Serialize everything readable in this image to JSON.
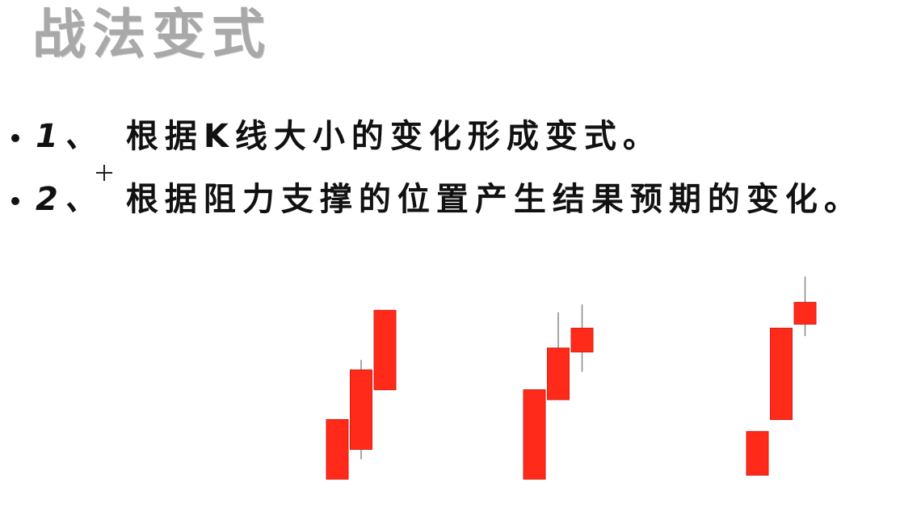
{
  "slide": {
    "title": "战法变式",
    "bullets": [
      {
        "number": "1、",
        "text": "根据K线大小的变化形成变式。"
      },
      {
        "number": "2、",
        "text": "根据阻力支撑的位置产生结果预期的变化。"
      }
    ]
  },
  "colors": {
    "candle_fill": "#ff2a1a",
    "candle_border": "#d81e10",
    "wick": "#888888",
    "title": "#a9a9a9",
    "text": "#111111"
  },
  "icons": {
    "cursor": "crosshair-cursor-icon"
  },
  "chart_data": {
    "type": "candlestick",
    "note": "three illustrative groups of rising red candles, no axes or labels",
    "groups": [
      {
        "name": "group-1",
        "candles": [
          {
            "open": 1,
            "close": 4,
            "high": 4,
            "low": 1
          },
          {
            "open": 2.5,
            "close": 6.5,
            "high": 7,
            "low": 2
          },
          {
            "open": 5.5,
            "close": 9.5,
            "high": 9.5,
            "low": 5.5
          }
        ]
      },
      {
        "name": "group-2",
        "candles": [
          {
            "open": 1,
            "close": 5.5,
            "high": 5.5,
            "low": 1
          },
          {
            "open": 5,
            "close": 7.6,
            "high": 9.4,
            "low": 5
          },
          {
            "open": 7.4,
            "close": 8.6,
            "high": 9.8,
            "low": 6.4
          }
        ]
      },
      {
        "name": "group-3",
        "candles": [
          {
            "open": 1.2,
            "close": 3.4,
            "high": 3.4,
            "low": 1.2
          },
          {
            "open": 4,
            "close": 8.6,
            "high": 8.6,
            "low": 4
          },
          {
            "open": 8.8,
            "close": 9.9,
            "high": 11.2,
            "low": 8.2
          }
        ]
      }
    ],
    "ylim": [
      0,
      11.5
    ]
  }
}
